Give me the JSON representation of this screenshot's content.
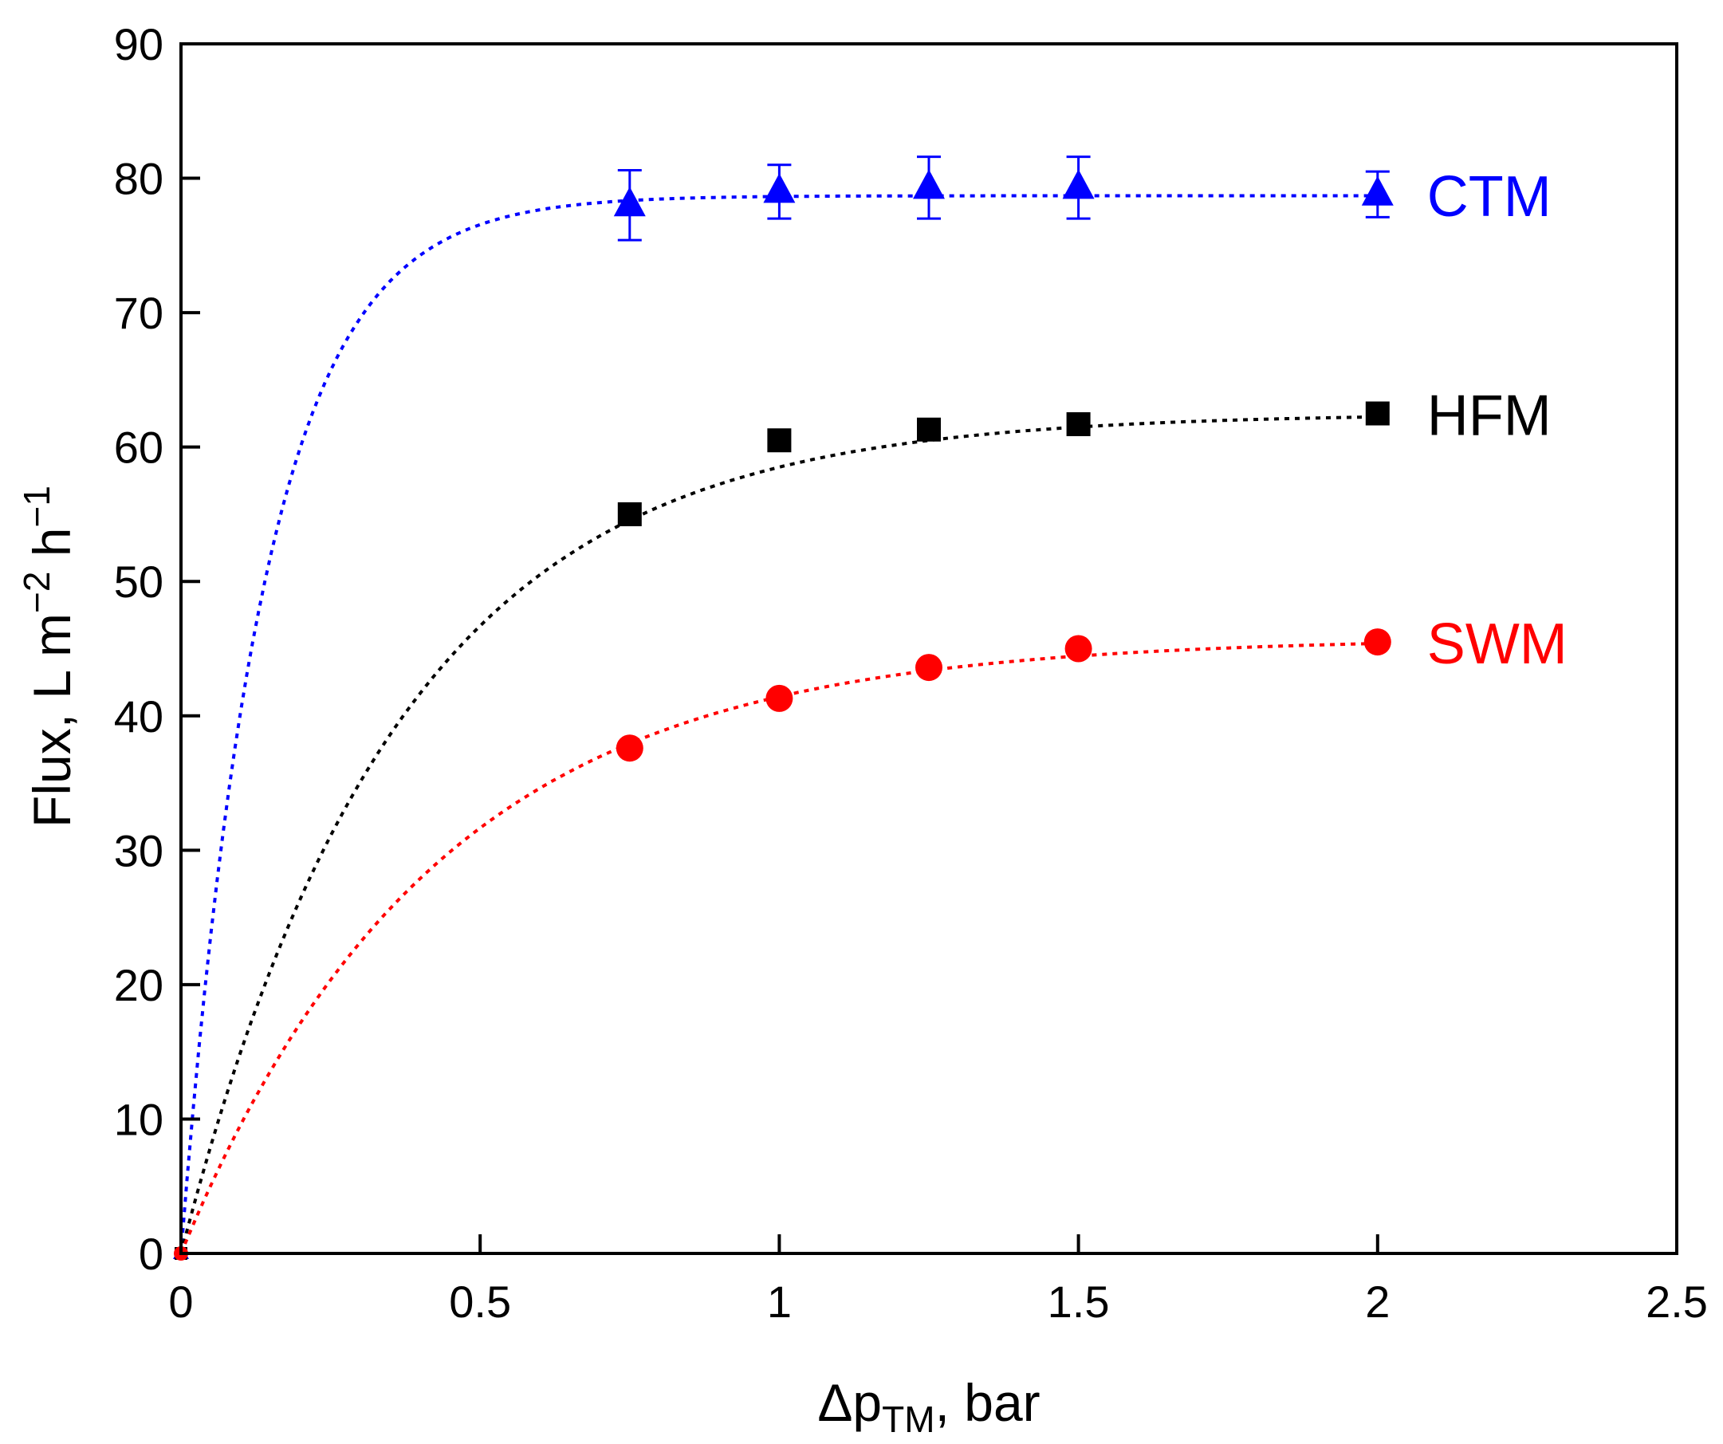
{
  "chart_data": {
    "type": "scatter",
    "title": "",
    "xlabel": {
      "main": "Δp",
      "sub": "TM",
      "suffix": ", bar"
    },
    "ylabel": {
      "main": "Flux, L m",
      "sup1": "−2",
      "mid": " h",
      "sup2": "−1"
    },
    "xlim": [
      0,
      2.5
    ],
    "ylim": [
      0,
      90
    ],
    "x_ticks": [
      0,
      0.5,
      1,
      1.5,
      2,
      2.5
    ],
    "x_tick_labels": [
      "0",
      "0.5",
      "1",
      "1.5",
      "2",
      "2.5"
    ],
    "y_ticks": [
      0,
      10,
      20,
      30,
      40,
      50,
      60,
      70,
      80,
      90
    ],
    "y_tick_labels": [
      "0",
      "10",
      "20",
      "30",
      "40",
      "50",
      "60",
      "70",
      "80",
      "90"
    ],
    "grid": false,
    "series": [
      {
        "name": "CTM",
        "color": "#0000ff",
        "marker": "triangle",
        "x": [
          0,
          0.75,
          1,
          1.25,
          1.5,
          2
        ],
        "y": [
          0,
          78,
          79,
          79.3,
          79.3,
          78.8
        ],
        "yerr": [
          0,
          2.6,
          2.0,
          2.3,
          2.3,
          1.7
        ],
        "fit": {
          "type": "exponential_saturation",
          "ymax": 78.7,
          "k": 7.2
        }
      },
      {
        "name": "HFM",
        "color": "#000000",
        "marker": "square",
        "x": [
          0,
          0.75,
          1,
          1.25,
          1.5,
          2
        ],
        "y": [
          0,
          55,
          60.5,
          61.3,
          61.7,
          62.5
        ],
        "yerr": [
          0,
          0,
          0,
          0,
          0,
          0
        ],
        "fit": {
          "type": "exponential_saturation",
          "ymax": 62.5,
          "k": 2.75
        }
      },
      {
        "name": "SWM",
        "color": "#ff0000",
        "marker": "circle",
        "x": [
          0,
          0.75,
          1,
          1.25,
          1.5,
          2
        ],
        "y": [
          0,
          37.6,
          41.3,
          43.6,
          45,
          45.5
        ],
        "yerr": [
          0,
          0,
          0,
          0,
          0,
          0
        ],
        "fit": {
          "type": "exponential_saturation",
          "ymax": 45.8,
          "k": 2.35
        }
      }
    ]
  }
}
